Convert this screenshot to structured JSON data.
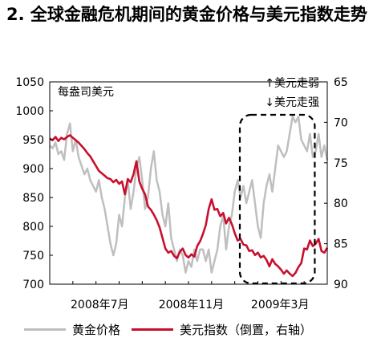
{
  "title": "2. 全球金融危机期间的黄金价格与美元指数走势",
  "chart_data": {
    "type": "line",
    "left_unit_label": "每盎司美元",
    "annotation_up": "↑美元走弱",
    "annotation_down": "↓美元走强",
    "x_ticks": [
      "2008年7月",
      "2008年11月",
      "2009年3月"
    ],
    "left_axis": {
      "ticks": [
        700,
        750,
        800,
        850,
        900,
        950,
        1000,
        1050
      ],
      "ylim": [
        700,
        1050
      ]
    },
    "right_axis": {
      "ticks": [
        65,
        70,
        75,
        80,
        85,
        90
      ],
      "ylim": [
        65,
        90
      ],
      "inverted": true
    },
    "series": [
      {
        "name": "黄金价格",
        "axis": "left",
        "color": "#bfbfbf",
        "values": [
          940,
          935,
          945,
          925,
          930,
          915,
          960,
          978,
          930,
          950,
          920,
          905,
          890,
          900,
          880,
          870,
          860,
          880,
          850,
          830,
          800,
          770,
          750,
          770,
          820,
          800,
          850,
          880,
          830,
          860,
          900,
          920,
          880,
          830,
          850,
          900,
          930,
          880,
          860,
          820,
          800,
          840,
          780,
          760,
          740,
          760,
          750,
          720,
          740,
          730,
          760,
          740,
          760,
          760,
          740,
          760,
          720,
          740,
          760,
          800,
          820,
          760,
          800,
          820,
          860,
          880,
          850,
          870,
          840,
          860,
          880,
          840,
          800,
          780,
          840,
          870,
          890,
          860,
          900,
          940,
          930,
          920,
          930,
          960,
          990,
          980,
          990,
          950,
          940,
          930,
          960,
          920,
          930,
          960,
          920,
          940,
          915
        ]
      },
      {
        "name": "美元指数（倒置，右轴）",
        "axis": "right",
        "color": "#c8102e",
        "values": [
          72.0,
          72.2,
          71.8,
          72.3,
          71.9,
          72.1,
          71.8,
          71.6,
          71.9,
          72.2,
          72.5,
          72.9,
          73.3,
          73.8,
          74.2,
          74.8,
          75.4,
          76.0,
          76.3,
          76.6,
          76.9,
          77.0,
          77.4,
          77.1,
          77.6,
          77.3,
          78.9,
          77.0,
          77.4,
          76.4,
          74.8,
          77.3,
          78.2,
          78.9,
          80.4,
          80.8,
          81.4,
          82.1,
          83.0,
          84.3,
          85.6,
          86.1,
          85.9,
          86.5,
          86.8,
          86.0,
          85.6,
          86.4,
          86.7,
          86.3,
          86.6,
          85.3,
          84.7,
          83.8,
          82.7,
          80.7,
          79.5,
          80.8,
          80.7,
          81.6,
          81.2,
          82.5,
          81.8,
          82.6,
          83.7,
          84.6,
          84.4,
          85.1,
          85.2,
          85.9,
          85.8,
          86.4,
          86.1,
          86.7,
          86.5,
          87.0,
          87.8,
          86.9,
          87.5,
          87.8,
          88.2,
          88.7,
          88.3,
          88.7,
          89.0,
          88.6,
          87.9,
          87.4,
          85.6,
          85.7,
          84.6,
          85.3,
          85.0,
          84.4,
          85.9,
          86.1,
          85.5
        ]
      }
    ]
  }
}
